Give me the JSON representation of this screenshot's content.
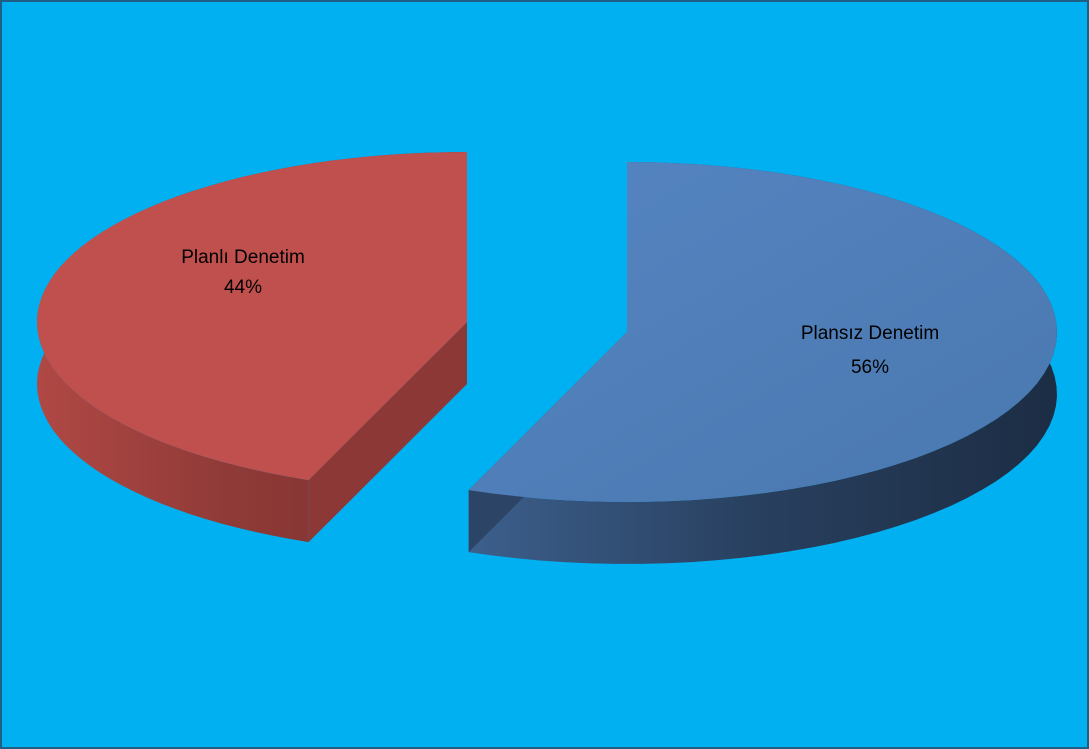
{
  "chart_data": {
    "type": "pie",
    "style": "3d-exploded",
    "slices": [
      {
        "label": "Planlı Denetim",
        "percent_label": "44%",
        "value": 44,
        "color": "#c0504d"
      },
      {
        "label": "Plansız Denetim",
        "percent_label": "56%",
        "value": 56,
        "color": "#4f81bd"
      }
    ],
    "background_color": "#00b0f0"
  }
}
